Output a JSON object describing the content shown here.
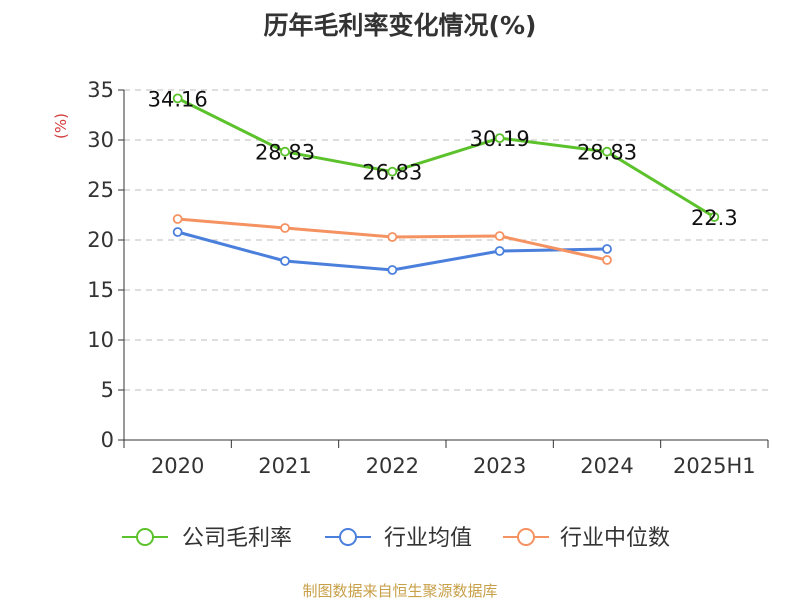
{
  "chart_data": {
    "type": "line",
    "title": "历年毛利率变化情况(%)",
    "ylabel": "(%)",
    "xlabel": "",
    "categories": [
      "2020",
      "2021",
      "2022",
      "2023",
      "2024",
      "2025H1"
    ],
    "ylim": [
      0,
      35
    ],
    "yticks": [
      0,
      5,
      10,
      15,
      20,
      25,
      30,
      35
    ],
    "grid": "horizontal-dashed",
    "legend_position": "bottom",
    "series": [
      {
        "name": "公司毛利率",
        "color": "#5cc22c",
        "values": [
          34.16,
          28.83,
          26.83,
          30.19,
          28.83,
          22.3
        ],
        "labels": [
          "34.16",
          "28.83",
          "26.83",
          "30.19",
          "28.83",
          "22.3"
        ],
        "show_labels": true
      },
      {
        "name": "行业均值",
        "color": "#4a7fdc",
        "values": [
          20.8,
          17.9,
          17.0,
          18.9,
          19.1,
          null
        ],
        "show_labels": false
      },
      {
        "name": "行业中位数",
        "color": "#f59262",
        "values": [
          22.1,
          21.2,
          20.3,
          20.4,
          18.0,
          null
        ],
        "show_labels": false
      }
    ]
  },
  "footer": {
    "source_text": "制图数据来自恒生聚源数据库",
    "source_color": "#c8a04a"
  },
  "colors": {
    "axis": "#333333",
    "grid": "#bdbdbd",
    "ylabel": "#d23c3c",
    "title": "#333333"
  }
}
